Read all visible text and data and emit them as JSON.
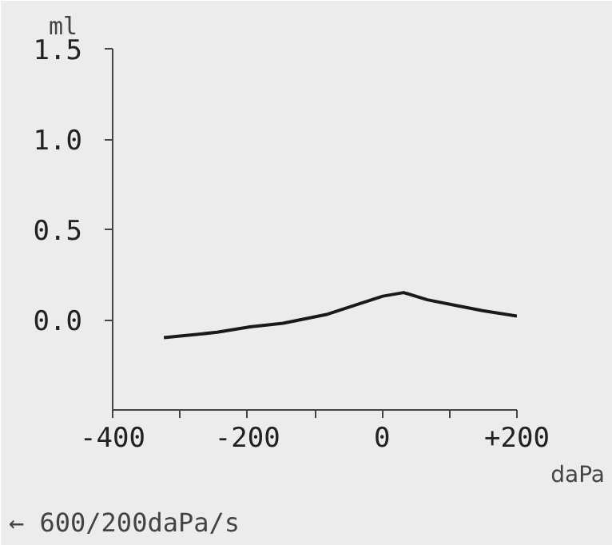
{
  "chart_data": {
    "type": "line",
    "ylabel": "ml",
    "xlabel": "daPa",
    "annotations": [
      "← 600/200daPa/s"
    ],
    "xlim": [
      -400,
      200
    ],
    "xticks": [
      -400,
      {
        "value": -300,
        "label": null
      },
      -200,
      {
        "value": -100,
        "label": null
      },
      0,
      {
        "value": 100,
        "label": null
      },
      {
        "value": 200,
        "label": "+200"
      }
    ],
    "ylim": [
      -0.5,
      1.5
    ],
    "yticks": [
      {
        "value": 0,
        "label": "0.0"
      },
      {
        "value": 0.5,
        "label": "0.5"
      },
      {
        "value": 1,
        "label": "1.0"
      },
      {
        "value": 1.5,
        "label": "1.5"
      }
    ],
    "grid": false,
    "series": [
      {
        "color": "#1a1a1a",
        "x": [
          -324,
          -245,
          -196,
          -147,
          -81,
          -32,
          1,
          32,
          67,
          108,
          149,
          200
        ],
        "values": [
          -0.1,
          -0.07,
          -0.04,
          -0.02,
          0.03,
          0.09,
          0.13,
          0.15,
          0.11,
          0.08,
          0.05,
          0.02
        ]
      }
    ]
  }
}
